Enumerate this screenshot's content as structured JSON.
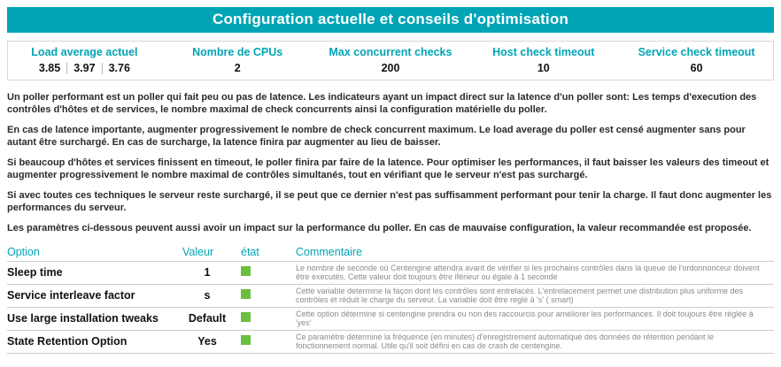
{
  "colors": {
    "accent": "#00a4b5",
    "status_ok": "#6abf3f"
  },
  "header": {
    "title": "Configuration actuelle et conseils d'optimisation"
  },
  "stats": {
    "columns": [
      {
        "label": "Load average actuel"
      },
      {
        "label": "Nombre de CPUs",
        "value": "2"
      },
      {
        "label": "Max concurrent checks",
        "value": "200"
      },
      {
        "label": "Host check timeout",
        "value": "10"
      },
      {
        "label": "Service check timeout",
        "value": "60"
      }
    ],
    "load_values": [
      "3.85",
      "3.97",
      "3.76"
    ]
  },
  "paragraphs": [
    "Un poller performant est un poller qui fait peu ou pas de latence. Les indicateurs ayant un impact direct sur la latence d'un poller sont: Les temps d'execution des contrôles d'hôtes et de services, le nombre maximal de check concurrents ainsi la configuration matérielle du poller.",
    "En cas de latence importante, augmenter progressivement le nombre de check concurrent maximum. Le load average du poller est censé augmenter sans pour autant être surchargé. En cas de surcharge, la latence finira par augmenter au lieu de baisser.",
    "Si beaucoup d'hôtes et services finissent en timeout, le poller finira par faire de la latence. Pour optimiser les performances, il faut baisser les valeurs des timeout et augmenter progressivement le nombre maximal de contrôles simultanés, tout en vérifiant que le serveur n'est pas surchargé.",
    "Si avec toutes ces techniques le serveur reste surchargé, il se peut que ce dernier n'est pas suffisamment performant pour tenir la charge. Il faut donc augmenter les performances du serveur.",
    "Les paramètres ci-dessous peuvent aussi avoir un impact sur la performance du poller. En cas de mauvaise configuration, la valeur recommandée est proposée."
  ],
  "options_table": {
    "headers": {
      "option": "Option",
      "value": "Valeur",
      "state": "état",
      "comment": "Commentaire"
    },
    "rows": [
      {
        "option": "Sleep time",
        "value": "1",
        "state": "ok",
        "comment": "Le nombre de seconde où Centengine attendra avant de vérifier si les prochains contrôles dans la queue de l'ordonnonceur doivent être executés. Cette valeur doit toujours être iférieur ou égale à 1 seconde"
      },
      {
        "option": "Service interleave factor",
        "value": "s",
        "state": "ok",
        "comment": "Cette variable determine la façon dont les contrôles sont entrelacés. L'entrelacement permet une distribution plus uniforme des contrôles et réduit le charge du serveur. La variable doit être reglé à 's' ( smart)"
      },
      {
        "option": "Use large installation tweaks",
        "value": "Default",
        "state": "ok",
        "comment": "Cette option détermine si centengine prendra ou non des raccourcis pour améliorer les performances. Il doit toujours être réglée à 'yes'"
      },
      {
        "option": "State Retention Option",
        "value": "Yes",
        "state": "ok",
        "comment": "Ce paramètre détermine la fréquence (en minutes) d'enregistrement automatique des données de rétention pendant le fonctionnement normal. Utile qu'il soit défini en cas de crash de centengine."
      }
    ]
  }
}
